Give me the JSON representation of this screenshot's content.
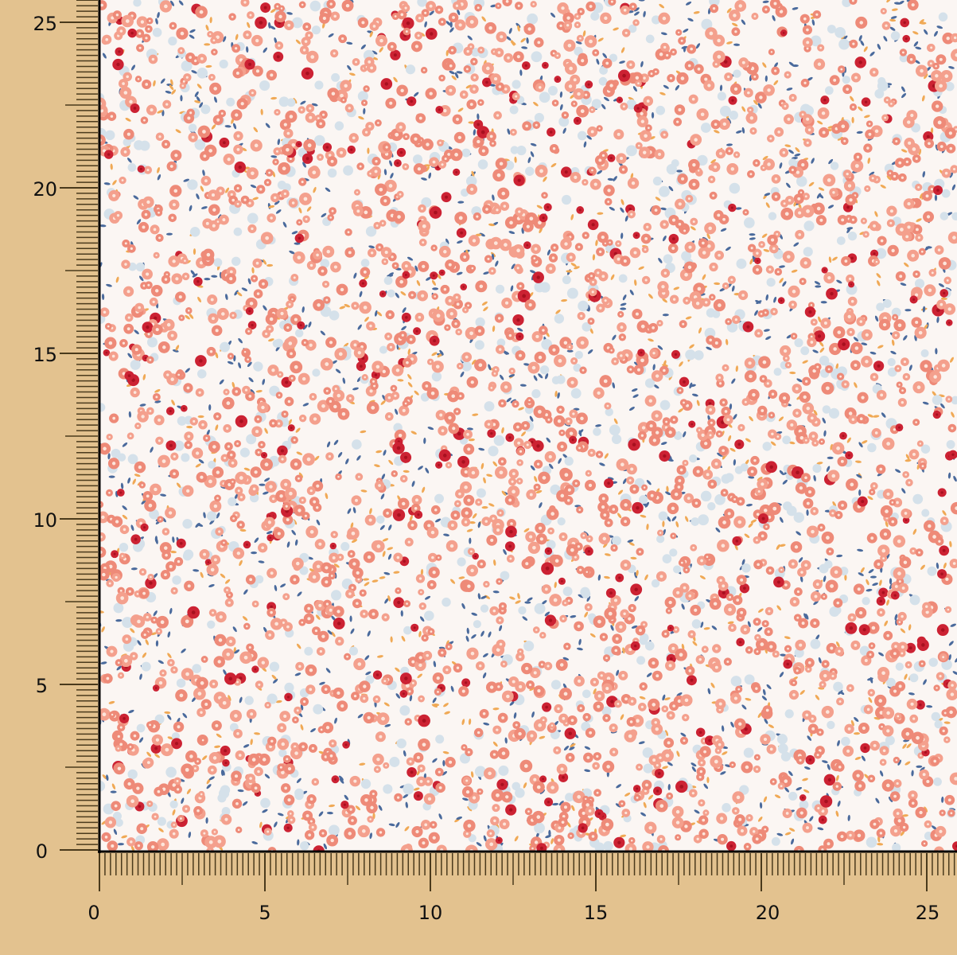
{
  "swatch": {
    "pattern": "small ditsy floral print",
    "colors": {
      "background": "#fbf6f3",
      "coral": "#ee8a78",
      "salmon": "#f4a08d",
      "red": "#cc2233",
      "pale_blue": "#d5e1ea",
      "leaf_blue": "#4a6a9c",
      "leaf_orange": "#f0a955",
      "ruler_bg": "#e3c28f"
    }
  },
  "ruler": {
    "x_labels": [
      "0",
      "5",
      "10",
      "15",
      "20",
      "25"
    ],
    "y_labels": [
      "0",
      "5",
      "10",
      "15",
      "20",
      "25"
    ]
  }
}
